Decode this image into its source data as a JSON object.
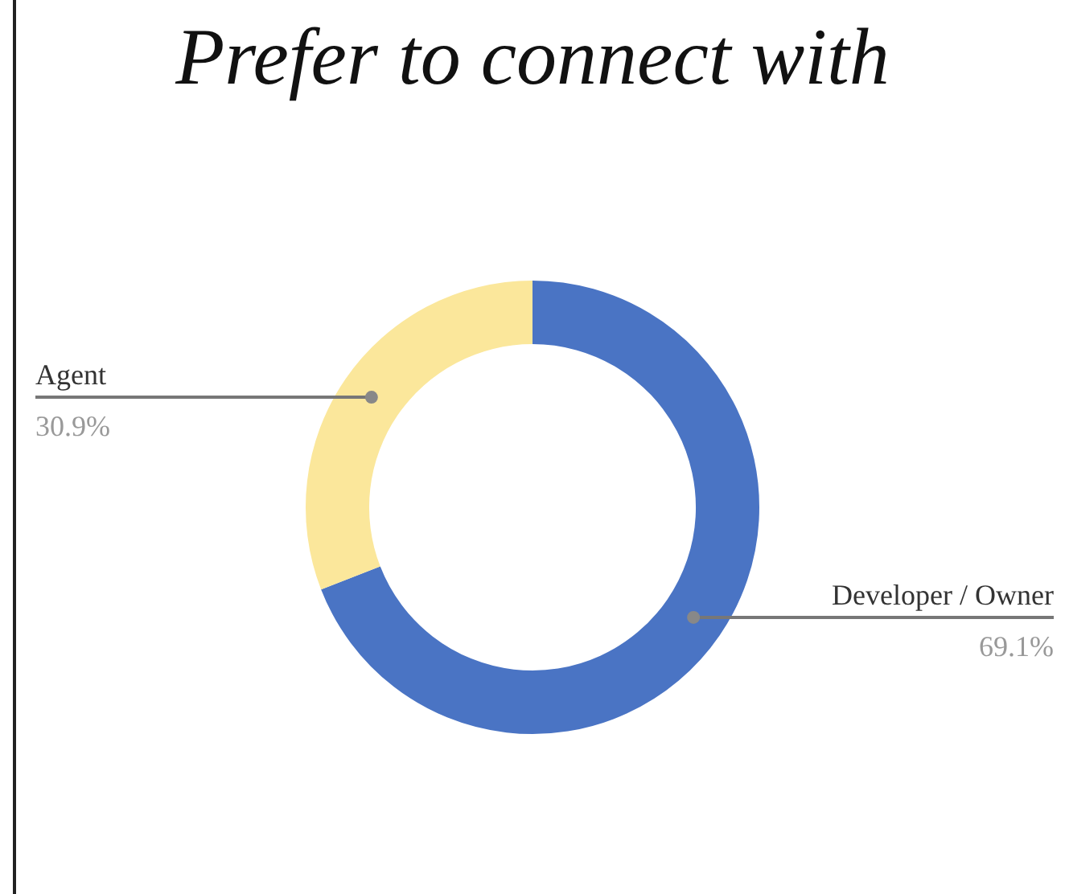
{
  "chart_data": {
    "type": "donut",
    "title": "Prefer to connect with",
    "categories": [
      "Developer / Owner",
      "Agent"
    ],
    "values": [
      69.1,
      30.9
    ],
    "value_labels": [
      "69.1%",
      "30.9%"
    ],
    "colors": [
      "#4a74c4",
      "#fbe79b"
    ],
    "legend": false
  }
}
